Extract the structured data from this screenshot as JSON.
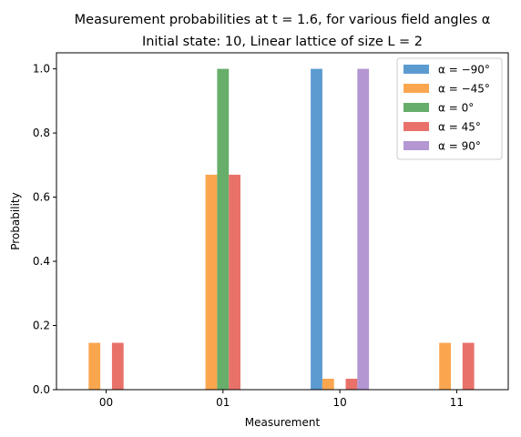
{
  "chart_data": {
    "type": "bar",
    "title_line1": "Measurement probabilities at t = 1.6, for various field angles α",
    "title_line2": "Initial state: 10, Linear lattice of size L = 2",
    "xlabel": "Measurement",
    "ylabel": "Probability",
    "categories": [
      "00",
      "01",
      "10",
      "11"
    ],
    "ylim": [
      0,
      1.05
    ],
    "yticks": [
      "0.0",
      "0.2",
      "0.4",
      "0.6",
      "0.8",
      "1.0"
    ],
    "legend_position": "top-right",
    "series": [
      {
        "name": "α = −90°",
        "color": "#5b9bd0",
        "values": [
          0.0,
          0.0,
          1.0,
          0.0
        ]
      },
      {
        "name": "α = −45°",
        "color": "#faa64f",
        "values": [
          0.146,
          0.67,
          0.034,
          0.146
        ]
      },
      {
        "name": "α = 0°",
        "color": "#67ae6a",
        "values": [
          0.0,
          1.0,
          0.0,
          0.0
        ]
      },
      {
        "name": "α = 45°",
        "color": "#e8726a",
        "values": [
          0.146,
          0.67,
          0.034,
          0.146
        ]
      },
      {
        "name": "α = 90°",
        "color": "#b496d3",
        "values": [
          0.0,
          0.0,
          1.0,
          0.0
        ]
      }
    ]
  }
}
